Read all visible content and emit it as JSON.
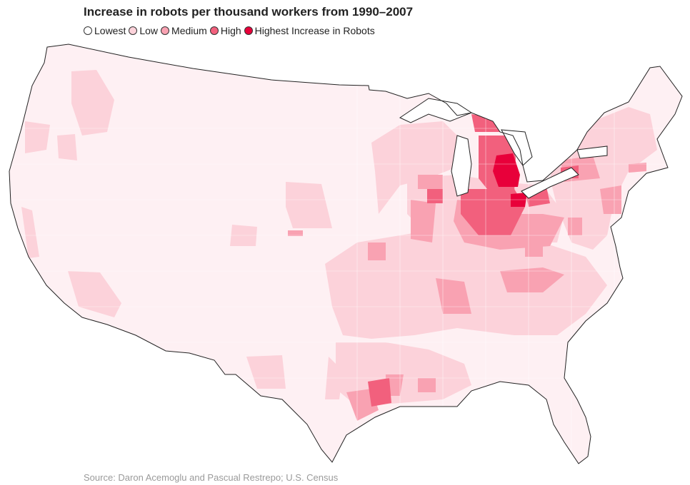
{
  "title": "Increase in robots per thousand workers from 1990–2007",
  "legend": [
    {
      "label": "Lowest",
      "color": "#ffffff"
    },
    {
      "label": "Low",
      "color": "#fcd2da"
    },
    {
      "label": "Medium",
      "color": "#f9a2b2"
    },
    {
      "label": "High",
      "color": "#f2607d"
    },
    {
      "label": "Highest Increase in Robots",
      "color": "#e8003a"
    }
  ],
  "base_fill": "#fef0f3",
  "source": "Source: Daron Acemoglu and Pascual Restrepo; U.S. Census"
}
